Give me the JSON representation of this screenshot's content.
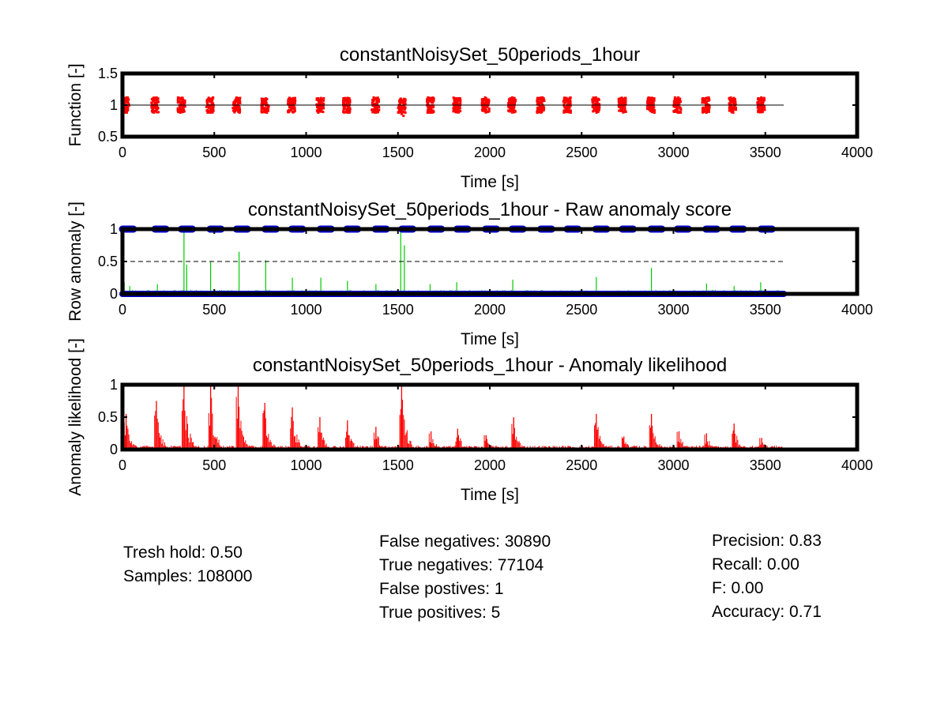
{
  "chart_data": [
    {
      "type": "scatter",
      "title": "constantNoisySet_50periods_1hour",
      "xlabel": "Time [s]",
      "ylabel": "Function [-]",
      "xlim": [
        0,
        4000
      ],
      "ylim": [
        0.5,
        1.5
      ],
      "xticks": [
        "0",
        "500",
        "1000",
        "1500",
        "2000",
        "2500",
        "3000",
        "3500",
        "4000"
      ],
      "yticks": [
        "0.5",
        "1",
        "1.5"
      ],
      "colors": {
        "data": "#ff0000",
        "reference": "#000000"
      },
      "reference_line": {
        "y": 1,
        "x": [
          0,
          3600
        ]
      },
      "burst_centers": [
        17,
        177,
        321,
        477,
        621,
        777,
        921,
        1077,
        1221,
        1377,
        1521,
        1677,
        1821,
        1977,
        2121,
        2277,
        2421,
        2577,
        2721,
        2877,
        3021,
        3177,
        3321,
        3477
      ],
      "burst_half_width": 30,
      "burst_value_range": [
        0.88,
        1.12
      ],
      "outliers": [
        {
          "x": 1530,
          "y": 0.83
        },
        {
          "x": 1520,
          "y": 0.86
        }
      ]
    },
    {
      "type": "line",
      "title": "constantNoisySet_50periods_1hour - Raw anomaly score",
      "xlabel": "Time [s]",
      "ylabel": "Row anomaly [-]",
      "xlim": [
        0,
        4000
      ],
      "ylim": [
        0,
        1
      ],
      "xticks": [
        "0",
        "500",
        "1000",
        "1500",
        "2000",
        "2500",
        "3000",
        "3500",
        "4000"
      ],
      "yticks": [
        "0",
        "0.5",
        "1"
      ],
      "threshold": 0.5,
      "colors": {
        "score": "#00cc00",
        "markers": "#0000cc",
        "threshold": "#000000"
      },
      "spikes": [
        {
          "x": 10,
          "y": 0.18
        },
        {
          "x": 40,
          "y": 0.12
        },
        {
          "x": 190,
          "y": 0.15
        },
        {
          "x": 335,
          "y": 0.95
        },
        {
          "x": 350,
          "y": 0.45
        },
        {
          "x": 480,
          "y": 0.5
        },
        {
          "x": 635,
          "y": 0.65
        },
        {
          "x": 780,
          "y": 0.52
        },
        {
          "x": 925,
          "y": 0.25
        },
        {
          "x": 1080,
          "y": 0.25
        },
        {
          "x": 1225,
          "y": 0.2
        },
        {
          "x": 1380,
          "y": 0.15
        },
        {
          "x": 1515,
          "y": 0.95
        },
        {
          "x": 1535,
          "y": 0.75
        },
        {
          "x": 1675,
          "y": 0.15
        },
        {
          "x": 1820,
          "y": 0.18
        },
        {
          "x": 2125,
          "y": 0.22
        },
        {
          "x": 2580,
          "y": 0.26
        },
        {
          "x": 2880,
          "y": 0.4
        },
        {
          "x": 3180,
          "y": 0.16
        },
        {
          "x": 3330,
          "y": 0.12
        },
        {
          "x": 3475,
          "y": 0.18
        }
      ],
      "high_marker_x": [
        0,
        177,
        321,
        477,
        621,
        777,
        921,
        1077,
        1221,
        1377,
        1521,
        1677,
        1821,
        1977,
        2121,
        2277,
        2421,
        2577,
        2721,
        2877,
        3021,
        3177,
        3321,
        3477
      ],
      "low_marker_range": [
        0,
        3600
      ]
    },
    {
      "type": "line",
      "title": "constantNoisySet_50periods_1hour - Anomaly likelihood",
      "xlabel": "Time [s]",
      "ylabel": "Anomaly likelihood [-]",
      "xlim": [
        0,
        4000
      ],
      "ylim": [
        0,
        1
      ],
      "xticks": [
        "0",
        "500",
        "1000",
        "1500",
        "2000",
        "2500",
        "3000",
        "3500",
        "4000"
      ],
      "yticks": [
        "0",
        "0.5",
        "1"
      ],
      "colors": {
        "likelihood": "#ff0000"
      },
      "peaks": [
        {
          "x": 20,
          "y": 0.55
        },
        {
          "x": 185,
          "y": 0.75
        },
        {
          "x": 335,
          "y": 1.0
        },
        {
          "x": 480,
          "y": 1.0
        },
        {
          "x": 630,
          "y": 1.0
        },
        {
          "x": 775,
          "y": 0.72
        },
        {
          "x": 925,
          "y": 0.65
        },
        {
          "x": 1075,
          "y": 0.5
        },
        {
          "x": 1225,
          "y": 0.45
        },
        {
          "x": 1380,
          "y": 0.35
        },
        {
          "x": 1520,
          "y": 1.0
        },
        {
          "x": 1680,
          "y": 0.28
        },
        {
          "x": 1825,
          "y": 0.32
        },
        {
          "x": 1980,
          "y": 0.22
        },
        {
          "x": 2130,
          "y": 0.5
        },
        {
          "x": 2580,
          "y": 0.55
        },
        {
          "x": 2730,
          "y": 0.2
        },
        {
          "x": 2880,
          "y": 0.55
        },
        {
          "x": 3030,
          "y": 0.28
        },
        {
          "x": 3180,
          "y": 0.25
        },
        {
          "x": 3330,
          "y": 0.4
        },
        {
          "x": 3480,
          "y": 0.18
        }
      ],
      "data_end": 3600
    }
  ],
  "stats": {
    "left": [
      "Tresh hold: 0.50",
      "Samples: 108000"
    ],
    "middle": [
      "False negatives: 30890",
      "True negatives: 77104",
      "False postives: 1",
      "True positives: 5"
    ],
    "right": [
      "Precision: 0.83",
      "Recall: 0.00",
      "F: 0.00",
      "Accuracy: 0.71"
    ]
  }
}
